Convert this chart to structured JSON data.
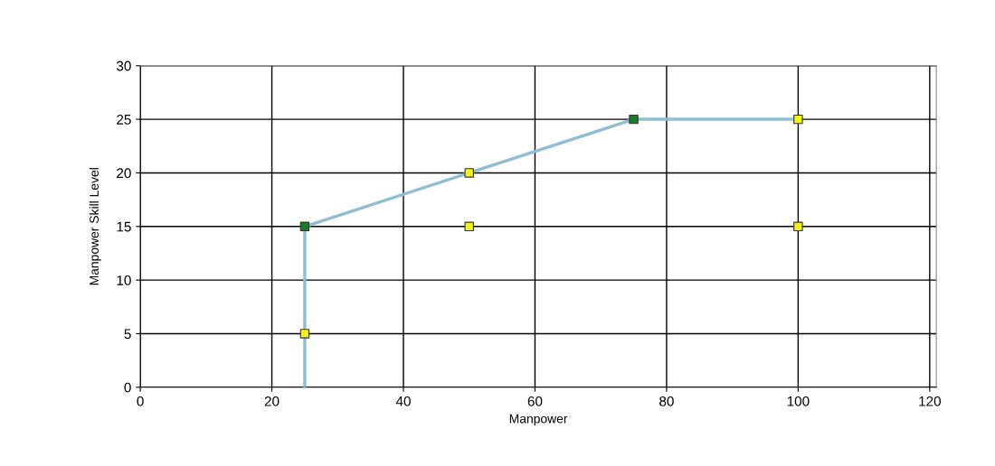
{
  "chart_data": {
    "type": "line",
    "xlabel": "Manpower",
    "ylabel": "Manpower Skill Level",
    "xlim": [
      0,
      121
    ],
    "xticks": [
      0,
      20,
      40,
      60,
      80,
      100,
      120
    ],
    "ylim": [
      0,
      30
    ],
    "yticks": [
      0,
      5,
      10,
      15,
      20,
      25,
      30
    ],
    "grid": true,
    "legend": false,
    "series": [
      {
        "color": "#8fbfd0",
        "marker": "none",
        "x": [
          25,
          25,
          50,
          75,
          100
        ],
        "values": [
          0,
          15,
          20,
          25,
          25
        ]
      },
      {
        "type": "scatter",
        "color": "#f2f21a",
        "marker": "square",
        "x": [
          25,
          50,
          50,
          100,
          100
        ],
        "values": [
          5,
          20,
          15,
          25,
          15
        ]
      },
      {
        "type": "scatter",
        "color": "#1a7a2a",
        "marker": "square",
        "x": [
          25,
          75
        ],
        "values": [
          15,
          25
        ]
      }
    ]
  }
}
